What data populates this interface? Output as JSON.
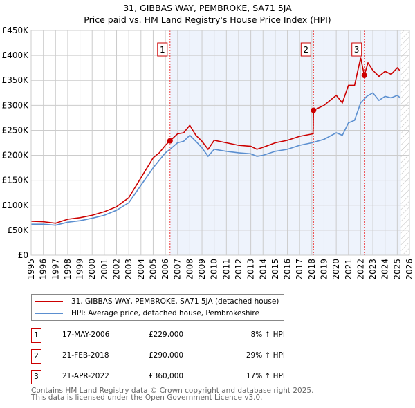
{
  "chart_data": {
    "type": "line",
    "title": "31, GIBBAS WAY, PEMBROKE, SA71 5JA",
    "subtitle": "Price paid vs. HM Land Registry's House Price Index (HPI)",
    "xlim": [
      1995,
      2026
    ],
    "ylim": [
      0,
      450000
    ],
    "x_ticks": [
      "1995",
      "1996",
      "1997",
      "1998",
      "1999",
      "2000",
      "2001",
      "2002",
      "2003",
      "2004",
      "2005",
      "2006",
      "2007",
      "2008",
      "2009",
      "2010",
      "2011",
      "2012",
      "2013",
      "2014",
      "2015",
      "2016",
      "2017",
      "2018",
      "2019",
      "2020",
      "2021",
      "2022",
      "2023",
      "2024",
      "2025",
      "2026"
    ],
    "y_ticks": [
      {
        "v": 0,
        "label": "£0"
      },
      {
        "v": 50000,
        "label": "£50K"
      },
      {
        "v": 100000,
        "label": "£100K"
      },
      {
        "v": 150000,
        "label": "£150K"
      },
      {
        "v": 200000,
        "label": "£200K"
      },
      {
        "v": 250000,
        "label": "£250K"
      },
      {
        "v": 300000,
        "label": "£300K"
      },
      {
        "v": 350000,
        "label": "£350K"
      },
      {
        "v": 400000,
        "label": "£400K"
      },
      {
        "v": 450000,
        "label": "£450K"
      }
    ],
    "grid": true,
    "series": [
      {
        "name": "31, GIBBAS WAY, PEMBROKE, SA71 5JA (detached house)",
        "color": "#cc0000",
        "x": [
          1995,
          1996,
          1997,
          1998,
          1999,
          2000,
          2001,
          2002,
          2003,
          2004,
          2005,
          2005.5,
          2006,
          2006.38,
          2007,
          2007.5,
          2008,
          2008.5,
          2009,
          2009.5,
          2010,
          2011,
          2012,
          2013,
          2013.5,
          2014,
          2015,
          2016,
          2017,
          2018.1,
          2018.14,
          2019,
          2020,
          2020.5,
          2021,
          2021.5,
          2022,
          2022.3,
          2022.6,
          2023,
          2023.5,
          2024,
          2024.5,
          2025,
          2025.2
        ],
        "y": [
          68000,
          67000,
          64000,
          72000,
          75000,
          80000,
          87000,
          97000,
          115000,
          155000,
          195000,
          205000,
          220000,
          229000,
          243000,
          245000,
          260000,
          240000,
          228000,
          212000,
          230000,
          225000,
          220000,
          218000,
          212000,
          216000,
          225000,
          230000,
          238000,
          243000,
          290000,
          300000,
          320000,
          305000,
          340000,
          340000,
          395000,
          360000,
          385000,
          370000,
          358000,
          368000,
          362000,
          375000,
          370000
        ]
      },
      {
        "name": "HPI: Average price, detached house, Pembrokeshire",
        "color": "#5b8fd0",
        "x": [
          1995,
          1996,
          1997,
          1998,
          1999,
          2000,
          2001,
          2002,
          2003,
          2004,
          2005,
          2005.5,
          2006,
          2006.38,
          2007,
          2007.5,
          2008,
          2008.5,
          2009,
          2009.5,
          2010,
          2011,
          2012,
          2013,
          2013.5,
          2014,
          2015,
          2016,
          2017,
          2018,
          2019,
          2020,
          2020.5,
          2021,
          2021.5,
          2022,
          2022.5,
          2023,
          2023.5,
          2024,
          2024.5,
          2025,
          2025.2
        ],
        "y": [
          62000,
          62000,
          60000,
          66000,
          69000,
          74000,
          80000,
          90000,
          105000,
          140000,
          175000,
          190000,
          205000,
          212000,
          225000,
          228000,
          240000,
          228000,
          215000,
          198000,
          212000,
          208000,
          205000,
          203000,
          198000,
          200000,
          208000,
          212000,
          220000,
          225000,
          232000,
          245000,
          240000,
          265000,
          270000,
          305000,
          318000,
          325000,
          310000,
          318000,
          315000,
          320000,
          316000
        ]
      }
    ],
    "sales": [
      {
        "n": "1",
        "x": 2006.38,
        "y": 229000,
        "date": "17-MAY-2006",
        "price": "£229,000",
        "hpi": "8% ↑ HPI"
      },
      {
        "n": "2",
        "x": 2018.14,
        "y": 290000,
        "date": "21-FEB-2018",
        "price": "£290,000",
        "hpi": "29% ↑ HPI"
      },
      {
        "n": "3",
        "x": 2022.3,
        "y": 360000,
        "date": "21-APR-2022",
        "price": "£360,000",
        "hpi": "17% ↑ HPI"
      }
    ],
    "forecast_start": 2025.3,
    "legend_placement": "below"
  },
  "footer": {
    "line1": "Contains HM Land Registry data © Crown copyright and database right 2025.",
    "line2": "This data is licensed under the Open Government Licence v3.0."
  }
}
